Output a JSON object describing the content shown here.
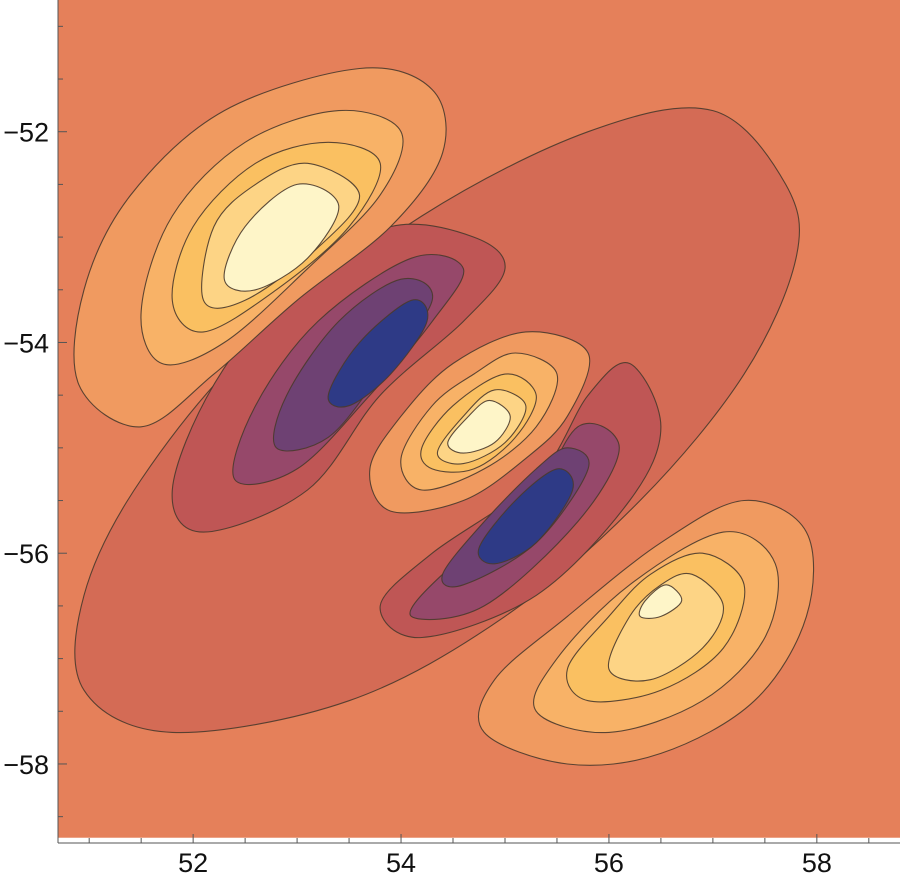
{
  "chart_data": {
    "type": "contour",
    "title": "",
    "xlabel": "",
    "ylabel": "",
    "xlim": [
      50.7,
      58.8
    ],
    "ylim": [
      -58.75,
      -50.75
    ],
    "x_ticks": [
      {
        "value": 52,
        "label": "52"
      },
      {
        "value": 54,
        "label": "54"
      },
      {
        "value": 56,
        "label": "56"
      },
      {
        "value": 58,
        "label": "58"
      }
    ],
    "y_ticks": [
      {
        "value": -52,
        "label": "−52"
      },
      {
        "value": -54,
        "label": "−54"
      },
      {
        "value": -56,
        "label": "−56"
      },
      {
        "value": -58,
        "label": "−58"
      }
    ],
    "minor_tick_step": 0.5,
    "plot_region": {
      "x": [
        50.7,
        58.8
      ],
      "y": [
        -58.7,
        -50.75
      ]
    },
    "grid": false,
    "legend": "none",
    "background_color": "#E5805A",
    "levels": [
      {
        "name": "low-outer",
        "color": "#D46B55",
        "polygons": [
          [
            [
              57.0,
              -51.8
            ],
            [
              57.7,
              -52.5
            ],
            [
              57.8,
              -53.2
            ],
            [
              57.3,
              -54.3
            ],
            [
              56.3,
              -55.5
            ],
            [
              55.0,
              -56.6
            ],
            [
              53.5,
              -57.4
            ],
            [
              51.8,
              -57.7
            ],
            [
              50.95,
              -57.3
            ],
            [
              50.95,
              -56.4
            ],
            [
              51.5,
              -55.3
            ],
            [
              52.6,
              -54.0
            ],
            [
              54.2,
              -52.8
            ],
            [
              55.8,
              -52.0
            ]
          ]
        ]
      },
      {
        "name": "low-1",
        "color": "#BF5655",
        "polygons": [
          [
            [
              53.9,
              -52.9
            ],
            [
              54.7,
              -53.0
            ],
            [
              55.0,
              -53.3
            ],
            [
              54.6,
              -53.8
            ],
            [
              53.8,
              -54.5
            ],
            [
              53.1,
              -55.4
            ],
            [
              52.1,
              -55.8
            ],
            [
              51.8,
              -55.4
            ],
            [
              52.2,
              -54.4
            ],
            [
              53.0,
              -53.4
            ]
          ],
          [
            [
              56.2,
              -54.2
            ],
            [
              56.5,
              -54.8
            ],
            [
              56.2,
              -55.5
            ],
            [
              55.3,
              -56.4
            ],
            [
              54.2,
              -56.8
            ],
            [
              53.8,
              -56.5
            ],
            [
              54.3,
              -56.0
            ],
            [
              55.3,
              -55.3
            ],
            [
              55.8,
              -54.5
            ]
          ]
        ]
      },
      {
        "name": "low-2",
        "color": "#96486A",
        "polygons": [
          [
            [
              54.1,
              -53.2
            ],
            [
              54.6,
              -53.3
            ],
            [
              54.3,
              -53.8
            ],
            [
              53.7,
              -54.5
            ],
            [
              53.0,
              -55.2
            ],
            [
              52.4,
              -55.3
            ],
            [
              52.6,
              -54.6
            ],
            [
              53.2,
              -53.8
            ]
          ],
          [
            [
              55.7,
              -54.8
            ],
            [
              56.1,
              -55.0
            ],
            [
              55.7,
              -55.7
            ],
            [
              54.8,
              -56.5
            ],
            [
              54.1,
              -56.6
            ],
            [
              54.4,
              -56.2
            ],
            [
              55.2,
              -55.6
            ]
          ]
        ]
      },
      {
        "name": "low-3",
        "color": "#6E4173",
        "polygons": [
          [
            [
              54.0,
              -53.4
            ],
            [
              54.3,
              -53.6
            ],
            [
              53.8,
              -54.3
            ],
            [
              53.3,
              -54.9
            ],
            [
              52.8,
              -55.0
            ],
            [
              52.9,
              -54.5
            ],
            [
              53.4,
              -53.8
            ]
          ],
          [
            [
              55.6,
              -55.0
            ],
            [
              55.8,
              -55.2
            ],
            [
              55.3,
              -55.9
            ],
            [
              54.6,
              -56.3
            ],
            [
              54.4,
              -56.2
            ],
            [
              54.8,
              -55.7
            ],
            [
              55.3,
              -55.2
            ]
          ]
        ]
      },
      {
        "name": "low-4",
        "color": "#2E3A86",
        "polygons": [
          [
            [
              54.1,
              -53.6
            ],
            [
              54.25,
              -53.8
            ],
            [
              53.9,
              -54.3
            ],
            [
              53.5,
              -54.6
            ],
            [
              53.3,
              -54.5
            ],
            [
              53.6,
              -54.0
            ]
          ],
          [
            [
              55.5,
              -55.2
            ],
            [
              55.65,
              -55.4
            ],
            [
              55.3,
              -55.9
            ],
            [
              54.9,
              -56.1
            ],
            [
              54.75,
              -55.95
            ],
            [
              55.1,
              -55.5
            ]
          ]
        ]
      },
      {
        "name": "high-1",
        "color": "#F09A60",
        "polygons": [
          [
            [
              53.6,
              -51.4
            ],
            [
              54.3,
              -51.6
            ],
            [
              54.4,
              -52.2
            ],
            [
              53.9,
              -52.9
            ],
            [
              53.0,
              -53.6
            ],
            [
              52.2,
              -54.3
            ],
            [
              51.5,
              -54.8
            ],
            [
              50.9,
              -54.4
            ],
            [
              50.95,
              -53.5
            ],
            [
              51.4,
              -52.6
            ],
            [
              52.3,
              -51.8
            ]
          ],
          [
            [
              55.2,
              -53.9
            ],
            [
              55.8,
              -54.1
            ],
            [
              55.6,
              -54.7
            ],
            [
              55.2,
              -55.1
            ],
            [
              54.6,
              -55.5
            ],
            [
              53.9,
              -55.6
            ],
            [
              53.7,
              -55.2
            ],
            [
              54.0,
              -54.7
            ],
            [
              54.5,
              -54.2
            ]
          ],
          [
            [
              57.3,
              -55.5
            ],
            [
              57.9,
              -55.8
            ],
            [
              57.9,
              -56.6
            ],
            [
              57.4,
              -57.4
            ],
            [
              56.5,
              -57.9
            ],
            [
              55.6,
              -58.0
            ],
            [
              54.8,
              -57.7
            ],
            [
              54.9,
              -57.2
            ],
            [
              55.6,
              -56.6
            ],
            [
              56.5,
              -55.9
            ]
          ]
        ]
      },
      {
        "name": "high-2",
        "color": "#F8B267",
        "polygons": [
          [
            [
              53.4,
              -51.8
            ],
            [
              54.0,
              -52.0
            ],
            [
              53.8,
              -52.6
            ],
            [
              53.1,
              -53.3
            ],
            [
              52.3,
              -54.0
            ],
            [
              51.7,
              -54.2
            ],
            [
              51.5,
              -53.7
            ],
            [
              51.8,
              -52.8
            ],
            [
              52.5,
              -52.1
            ]
          ],
          [
            [
              55.1,
              -54.1
            ],
            [
              55.5,
              -54.3
            ],
            [
              55.3,
              -54.8
            ],
            [
              54.8,
              -55.2
            ],
            [
              54.2,
              -55.4
            ],
            [
              54.0,
              -55.1
            ],
            [
              54.3,
              -54.6
            ],
            [
              54.7,
              -54.3
            ]
          ],
          [
            [
              57.1,
              -55.8
            ],
            [
              57.6,
              -56.1
            ],
            [
              57.5,
              -56.8
            ],
            [
              56.9,
              -57.4
            ],
            [
              56.0,
              -57.7
            ],
            [
              55.3,
              -57.5
            ],
            [
              55.5,
              -57.0
            ],
            [
              56.2,
              -56.3
            ]
          ]
        ]
      },
      {
        "name": "high-3",
        "color": "#FAC061",
        "polygons": [
          [
            [
              53.3,
              -52.1
            ],
            [
              53.8,
              -52.3
            ],
            [
              53.5,
              -52.9
            ],
            [
              52.8,
              -53.5
            ],
            [
              52.1,
              -53.9
            ],
            [
              51.8,
              -53.6
            ],
            [
              52.0,
              -52.9
            ],
            [
              52.6,
              -52.3
            ]
          ],
          [
            [
              55.0,
              -54.3
            ],
            [
              55.3,
              -54.5
            ],
            [
              55.1,
              -54.9
            ],
            [
              54.7,
              -55.2
            ],
            [
              54.3,
              -55.2
            ],
            [
              54.2,
              -55.0
            ],
            [
              54.5,
              -54.6
            ]
          ],
          [
            [
              56.9,
              -56.0
            ],
            [
              57.3,
              -56.3
            ],
            [
              57.1,
              -56.9
            ],
            [
              56.5,
              -57.3
            ],
            [
              55.8,
              -57.4
            ],
            [
              55.6,
              -57.1
            ],
            [
              56.0,
              -56.6
            ],
            [
              56.4,
              -56.2
            ]
          ]
        ]
      },
      {
        "name": "high-4",
        "color": "#FDD485",
        "polygons": [
          [
            [
              53.1,
              -52.3
            ],
            [
              53.6,
              -52.6
            ],
            [
              53.2,
              -53.1
            ],
            [
              52.5,
              -53.6
            ],
            [
              52.1,
              -53.6
            ],
            [
              52.2,
              -52.9
            ],
            [
              52.6,
              -52.5
            ]
          ],
          [
            [
              54.9,
              -54.45
            ],
            [
              55.2,
              -54.6
            ],
            [
              55.0,
              -54.95
            ],
            [
              54.6,
              -55.15
            ],
            [
              54.35,
              -55.05
            ],
            [
              54.6,
              -54.7
            ]
          ],
          [
            [
              56.8,
              -56.2
            ],
            [
              57.1,
              -56.5
            ],
            [
              56.9,
              -56.9
            ],
            [
              56.4,
              -57.2
            ],
            [
              56.0,
              -57.1
            ],
            [
              56.2,
              -56.6
            ],
            [
              56.5,
              -56.3
            ]
          ]
        ]
      },
      {
        "name": "high-5",
        "color": "#FEF5C8",
        "polygons": [
          [
            [
              53.0,
              -52.5
            ],
            [
              53.4,
              -52.7
            ],
            [
              53.1,
              -53.2
            ],
            [
              52.6,
              -53.5
            ],
            [
              52.3,
              -53.4
            ],
            [
              52.5,
              -52.9
            ]
          ],
          [
            [
              54.85,
              -54.55
            ],
            [
              55.05,
              -54.7
            ],
            [
              54.9,
              -54.95
            ],
            [
              54.6,
              -55.05
            ],
            [
              54.45,
              -54.95
            ],
            [
              54.65,
              -54.7
            ]
          ],
          [
            [
              56.55,
              -56.3
            ],
            [
              56.7,
              -56.45
            ],
            [
              56.5,
              -56.6
            ],
            [
              56.3,
              -56.6
            ],
            [
              56.35,
              -56.45
            ]
          ]
        ]
      }
    ]
  }
}
